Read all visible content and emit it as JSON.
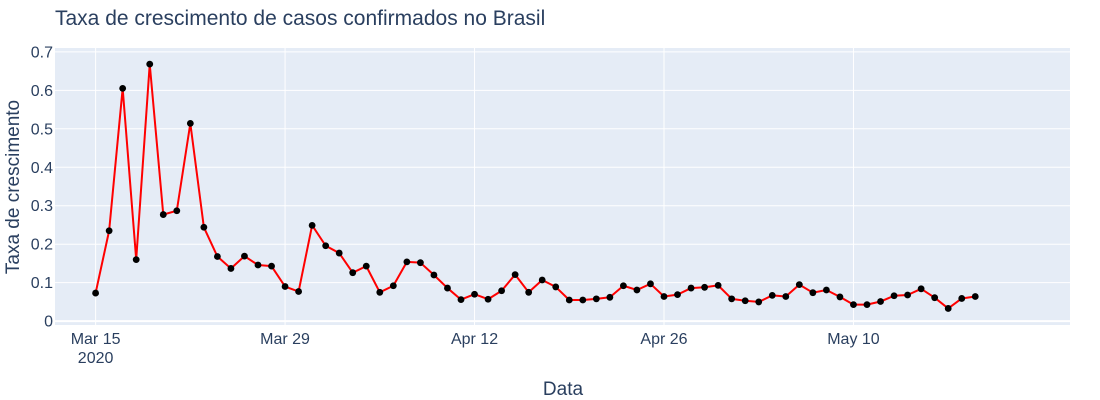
{
  "chart_data": {
    "type": "line",
    "title": "Taxa de crescimento de casos confirmados no Brasil",
    "xlabel": "Data",
    "ylabel": "Taxa de crescimento",
    "x_start": "2020-03-15",
    "x_end": "2020-05-20",
    "xlim": [
      "2020-03-12",
      "2020-05-26"
    ],
    "ylim": [
      -0.01,
      0.71
    ],
    "grid": true,
    "colors": {
      "line": "#ff0000",
      "marker": "#000000",
      "plot_bg": "#e5ecf6",
      "grid": "#ffffff",
      "text": "#2a3f5f"
    },
    "x_ticks": [
      {
        "date": "2020-03-15",
        "label": "Mar 15",
        "sublabel": "2020"
      },
      {
        "date": "2020-03-29",
        "label": "Mar 29",
        "sublabel": ""
      },
      {
        "date": "2020-04-12",
        "label": "Apr 12",
        "sublabel": ""
      },
      {
        "date": "2020-04-26",
        "label": "Apr 26",
        "sublabel": ""
      },
      {
        "date": "2020-05-10",
        "label": "May 10",
        "sublabel": ""
      }
    ],
    "y_ticks": [
      0,
      0.1,
      0.2,
      0.3,
      0.4,
      0.5,
      0.6,
      0.7
    ],
    "y_tick_labels": [
      "0",
      "0.1",
      "0.2",
      "0.3",
      "0.4",
      "0.5",
      "0.6",
      "0.7"
    ],
    "series": [
      {
        "values": [
          0.073,
          0.235,
          0.605,
          0.16,
          0.668,
          0.277,
          0.287,
          0.514,
          0.244,
          0.168,
          0.137,
          0.169,
          0.146,
          0.143,
          0.09,
          0.077,
          0.249,
          0.196,
          0.177,
          0.126,
          0.143,
          0.075,
          0.092,
          0.154,
          0.152,
          0.12,
          0.086,
          0.056,
          0.07,
          0.057,
          0.079,
          0.121,
          0.075,
          0.107,
          0.089,
          0.055,
          0.055,
          0.058,
          0.062,
          0.092,
          0.081,
          0.097,
          0.064,
          0.069,
          0.086,
          0.088,
          0.093,
          0.058,
          0.053,
          0.05,
          0.067,
          0.064,
          0.095,
          0.074,
          0.081,
          0.063,
          0.043,
          0.043,
          0.051,
          0.066,
          0.068,
          0.084,
          0.061,
          0.033,
          0.059,
          0.064
        ]
      }
    ]
  }
}
